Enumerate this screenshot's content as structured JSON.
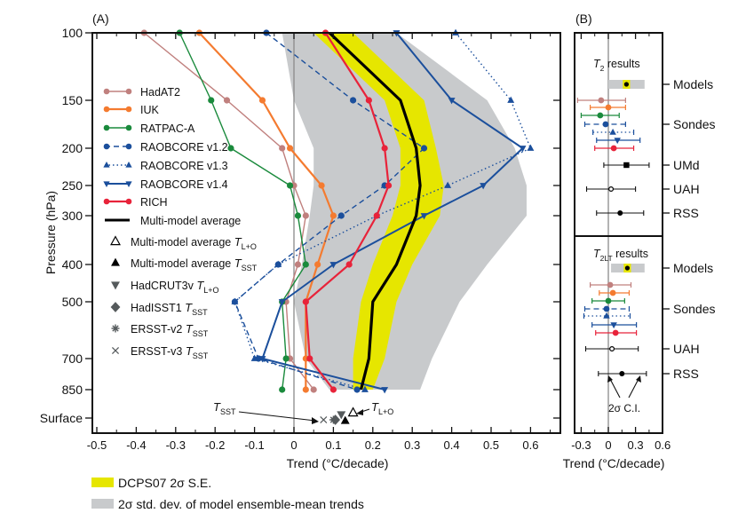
{
  "chart_data": [
    {
      "panel_label": "(A)",
      "type": "line",
      "xlabel": "Trend (°C/decade)",
      "ylabel": "Pressure (hPa)",
      "xlim": [
        -0.5,
        0.65
      ],
      "x_ticks": [
        "-0.5",
        "-0.4",
        "-0.3",
        "-0.2",
        "-0.1",
        "0",
        "0.1",
        "0.2",
        "0.3",
        "0.4",
        "0.5",
        "0.6"
      ],
      "x_tick_values": [
        -0.5,
        -0.4,
        -0.3,
        -0.2,
        -0.1,
        0,
        0.1,
        0.2,
        0.3,
        0.4,
        0.5,
        0.6
      ],
      "levels": [
        "100",
        "150",
        "200",
        "250",
        "300",
        "400",
        "500",
        "700",
        "850",
        "Surface"
      ],
      "grid": false,
      "shaded_bands": [
        {
          "name": "2σ std. dev. of model ensemble-mean trends",
          "color": "#c8cacc",
          "levels": [
            "100",
            "150",
            "200",
            "250",
            "300",
            "400",
            "500",
            "700",
            "850"
          ],
          "low": [
            -0.03,
            0.0,
            0.05,
            0.05,
            0.04,
            0.02,
            0.0,
            0.03,
            0.09
          ],
          "high": [
            0.26,
            0.49,
            0.56,
            0.59,
            0.59,
            0.49,
            0.42,
            0.35,
            0.32
          ]
        },
        {
          "name": "DCPS07 2σ S.E.",
          "color": "#e6e600",
          "levels": [
            "100",
            "150",
            "200",
            "250",
            "300",
            "400",
            "500",
            "700",
            "850"
          ],
          "low": [
            0.05,
            0.23,
            0.27,
            0.27,
            0.25,
            0.2,
            0.17,
            0.15,
            0.15
          ],
          "high": [
            0.15,
            0.33,
            0.36,
            0.38,
            0.37,
            0.3,
            0.26,
            0.23,
            0.2
          ]
        }
      ],
      "series": [
        {
          "name": "HadAT2",
          "color": "#c0807e",
          "marker": "circle",
          "dash": "solid",
          "width": 1.4,
          "levels": [
            "100",
            "150",
            "200",
            "250",
            "300",
            "400",
            "500",
            "700",
            "850"
          ],
          "values": [
            -0.38,
            -0.17,
            -0.03,
            0.0,
            0.03,
            0.01,
            -0.02,
            -0.01,
            0.05
          ]
        },
        {
          "name": "IUK",
          "color": "#f47b30",
          "marker": "circle",
          "dash": "solid",
          "width": 2.2,
          "levels": [
            "100",
            "150",
            "200",
            "250",
            "300",
            "400",
            "500",
            "700",
            "850"
          ],
          "values": [
            -0.24,
            -0.08,
            -0.01,
            0.07,
            0.1,
            0.06,
            0.03,
            0.03,
            0.03
          ]
        },
        {
          "name": "RATPAC-A",
          "color": "#1a8a3c",
          "marker": "circle",
          "dash": "solid",
          "width": 1.4,
          "levels": [
            "100",
            "150",
            "200",
            "250",
            "300",
            "400",
            "500",
            "700",
            "850"
          ],
          "values": [
            -0.29,
            -0.21,
            -0.16,
            -0.01,
            0.01,
            0.03,
            -0.03,
            -0.02,
            -0.03
          ]
        },
        {
          "name": "RAOBCORE v1.2",
          "color": "#1b4f9c",
          "marker": "circle",
          "dash": "dashed",
          "width": 1.4,
          "levels": [
            "100",
            "150",
            "200",
            "250",
            "300",
            "400",
            "500",
            "700",
            "850"
          ],
          "values": [
            -0.07,
            0.15,
            0.33,
            0.23,
            0.12,
            -0.04,
            -0.15,
            -0.09,
            0.16
          ]
        },
        {
          "name": "RAOBCORE v1.3",
          "color": "#1b4f9c",
          "marker": "triangle-up",
          "dash": "dotted",
          "width": 1.4,
          "levels": [
            "100",
            "150",
            "200",
            "250",
            "300",
            "400",
            "500",
            "700",
            "850"
          ],
          "values": [
            0.41,
            0.55,
            0.6,
            0.39,
            0.21,
            -0.04,
            -0.15,
            -0.1,
            0.18
          ]
        },
        {
          "name": "RAOBCORE v1.4",
          "color": "#1b4f9c",
          "marker": "triangle-down",
          "dash": "solid",
          "width": 2.0,
          "levels": [
            "100",
            "150",
            "200",
            "250",
            "300",
            "400",
            "500",
            "700",
            "850"
          ],
          "values": [
            0.26,
            0.4,
            0.58,
            0.48,
            0.33,
            0.1,
            -0.03,
            -0.08,
            0.23
          ]
        },
        {
          "name": "RICH",
          "color": "#e8233a",
          "marker": "circle",
          "dash": "solid",
          "width": 2.2,
          "levels": [
            "100",
            "150",
            "200",
            "250",
            "300",
            "400",
            "500",
            "700",
            "850"
          ],
          "values": [
            0.08,
            0.19,
            0.23,
            0.24,
            0.21,
            0.14,
            0.03,
            0.04,
            0.1
          ]
        },
        {
          "name": "Multi-model average",
          "color": "#000000",
          "marker": "none",
          "dash": "solid",
          "width": 3.2,
          "levels": [
            "100",
            "150",
            "200",
            "250",
            "300",
            "400",
            "500",
            "700",
            "850"
          ],
          "values": [
            0.09,
            0.27,
            0.31,
            0.32,
            0.31,
            0.26,
            0.2,
            0.19,
            0.17
          ]
        }
      ],
      "surface_points": [
        {
          "name": "Multi-model average T_L+O",
          "marker": "triangle-up-open",
          "color": "#000000",
          "value": 0.15
        },
        {
          "name": "Multi-model average T_SST",
          "marker": "triangle-up",
          "color": "#000000",
          "value": 0.13
        },
        {
          "name": "HadCRUT3v T_L+O",
          "marker": "triangle-down",
          "color": "#555a5c",
          "value": 0.12
        },
        {
          "name": "HadISST1 T_SST",
          "marker": "diamond",
          "color": "#555a5c",
          "value": 0.105
        },
        {
          "name": "ERSST-v2 T_SST",
          "marker": "asterisk",
          "color": "#555a5c",
          "value": 0.1
        },
        {
          "name": "ERSST-v3 T_SST",
          "marker": "cross",
          "color": "#555a5c",
          "value": 0.075
        }
      ],
      "annotations": [
        {
          "text_main": "T",
          "text_sub": "SST",
          "points_to": "ERSST/HadISST surface markers"
        },
        {
          "text_main": "T",
          "text_sub": "L+O",
          "points_to": "Multi-model average T_L+O"
        }
      ],
      "legend": {
        "placement": "left",
        "entries": [
          {
            "label": "HadAT2"
          },
          {
            "label": "IUK"
          },
          {
            "label": "RATPAC-A"
          },
          {
            "label": "RAOBCORE v1.2"
          },
          {
            "label": "RAOBCORE v1.3"
          },
          {
            "label": "RAOBCORE v1.4"
          },
          {
            "label": "RICH"
          },
          {
            "label": "Multi-model average"
          },
          {
            "label": "Multi-model average ",
            "sub_main": "T",
            "sub": "L+O"
          },
          {
            "label": "Multi-model average ",
            "sub_main": "T",
            "sub": "SST"
          },
          {
            "label": "HadCRUT3v ",
            "sub_main": "T",
            "sub": "L+O"
          },
          {
            "label": "HadISST1 ",
            "sub_main": "T",
            "sub": "SST"
          },
          {
            "label": "ERSST-v2 ",
            "sub_main": "T",
            "sub": "SST"
          },
          {
            "label": "ERSST-v3 ",
            "sub_main": "T",
            "sub": "SST"
          }
        ]
      },
      "bottom_legend": [
        {
          "label": "DCPS07 2σ S.E.",
          "color": "#e6e600"
        },
        {
          "label": "2σ std. dev. of model ensemble-mean trends",
          "color": "#c8cacc"
        }
      ]
    },
    {
      "panel_label": "(B)",
      "type": "scatter",
      "xlabel": "Trend (°C/decade)",
      "xlim": [
        -0.38,
        0.62
      ],
      "x_ticks": [
        "-0.3",
        "0",
        "0.3",
        "0.6"
      ],
      "x_tick_values": [
        -0.3,
        0,
        0.3,
        0.6
      ],
      "subpanels": [
        {
          "title_main": "T",
          "title_sub": "2",
          "title_rest": " results",
          "row_labels": [
            "Models",
            "Sondes",
            "UMd",
            "UAH",
            "RSS"
          ],
          "models": {
            "value": 0.2,
            "grey": [
              0.0,
              0.4
            ],
            "yellow": [
              0.16,
              0.24
            ]
          },
          "sondes": [
            {
              "name": "HadAT2",
              "color": "#c0807e",
              "marker": "circle",
              "value": -0.08,
              "ci": [
                -0.34,
                0.19
              ],
              "dash": "solid"
            },
            {
              "name": "IUK",
              "color": "#f47b30",
              "marker": "circle",
              "value": 0.0,
              "ci": [
                -0.2,
                0.19
              ],
              "dash": "solid"
            },
            {
              "name": "RATPAC-A",
              "color": "#1a8a3c",
              "marker": "circle",
              "value": -0.09,
              "ci": [
                -0.3,
                0.12
              ],
              "dash": "solid"
            },
            {
              "name": "RAOBCORE v1.2",
              "color": "#1b4f9c",
              "marker": "circle",
              "value": -0.03,
              "ci": [
                -0.26,
                0.19
              ],
              "dash": "dashed"
            },
            {
              "name": "RAOBCORE v1.3",
              "color": "#1b4f9c",
              "marker": "triangle-up",
              "value": 0.05,
              "ci": [
                -0.17,
                0.28
              ],
              "dash": "dotted"
            },
            {
              "name": "RAOBCORE v1.4",
              "color": "#1b4f9c",
              "marker": "triangle-down",
              "value": 0.1,
              "ci": [
                -0.13,
                0.35
              ],
              "dash": "solid"
            },
            {
              "name": "RICH",
              "color": "#e8233a",
              "marker": "circle",
              "value": 0.06,
              "ci": [
                -0.15,
                0.28
              ],
              "dash": "solid"
            }
          ],
          "satellites": [
            {
              "name": "UMd",
              "marker": "square",
              "value": 0.2,
              "ci": [
                -0.05,
                0.45
              ]
            },
            {
              "name": "UAH",
              "marker": "circle-open",
              "value": 0.03,
              "ci": [
                -0.24,
                0.3
              ]
            },
            {
              "name": "RSS",
              "marker": "circle",
              "value": 0.13,
              "ci": [
                -0.13,
                0.39
              ]
            }
          ]
        },
        {
          "title_main": "T",
          "title_sub": "2LT",
          "title_rest": " results",
          "row_labels": [
            "Models",
            "Sondes",
            "UAH",
            "RSS"
          ],
          "models": {
            "value": 0.21,
            "grey": [
              0.03,
              0.4
            ],
            "yellow": [
              0.17,
              0.25
            ]
          },
          "sondes": [
            {
              "name": "HadAT2",
              "color": "#c0807e",
              "marker": "circle",
              "value": 0.02,
              "ci": [
                -0.2,
                0.25
              ],
              "dash": "solid"
            },
            {
              "name": "IUK",
              "color": "#f47b30",
              "marker": "circle",
              "value": 0.05,
              "ci": [
                -0.1,
                0.23
              ],
              "dash": "solid"
            },
            {
              "name": "RATPAC-A",
              "color": "#1a8a3c",
              "marker": "circle",
              "value": 0.0,
              "ci": [
                -0.18,
                0.18
              ],
              "dash": "solid"
            },
            {
              "name": "RAOBCORE v1.2",
              "color": "#1b4f9c",
              "marker": "circle",
              "value": -0.02,
              "ci": [
                -0.26,
                0.23
              ],
              "dash": "dashed"
            },
            {
              "name": "RAOBCORE v1.3",
              "color": "#1b4f9c",
              "marker": "triangle-up",
              "value": -0.02,
              "ci": [
                -0.27,
                0.24
              ],
              "dash": "dotted"
            },
            {
              "name": "RAOBCORE v1.4",
              "color": "#1b4f9c",
              "marker": "triangle-down",
              "value": 0.06,
              "ci": [
                -0.18,
                0.31
              ],
              "dash": "solid"
            },
            {
              "name": "RICH",
              "color": "#e8233a",
              "marker": "circle",
              "value": 0.08,
              "ci": [
                -0.14,
                0.31
              ],
              "dash": "solid"
            }
          ],
          "satellites": [
            {
              "name": "UAH",
              "marker": "circle-open",
              "value": 0.04,
              "ci": [
                -0.25,
                0.33
              ]
            },
            {
              "name": "RSS",
              "marker": "circle",
              "value": 0.15,
              "ci": [
                -0.11,
                0.42
              ]
            }
          ],
          "annotation": "2σ C.I."
        }
      ]
    }
  ]
}
